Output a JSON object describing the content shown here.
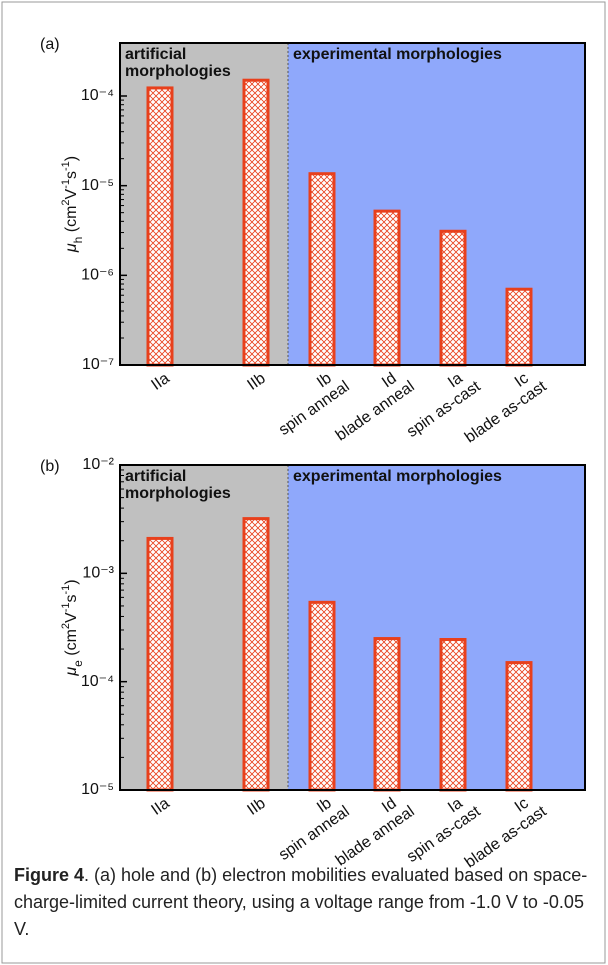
{
  "chart_data": [
    {
      "type": "bar",
      "panel_label": "(a)",
      "ylabel": [
        "μ",
        "h",
        " (cm",
        "2",
        "V",
        "-1",
        "s",
        "-1",
        ")"
      ],
      "categories": [
        "IIa",
        "IIb",
        "Ib",
        "Id",
        "Ia",
        "Ic"
      ],
      "category_notes": [
        null,
        null,
        "spin anneal",
        "blade anneal",
        "spin as-cast",
        "blade as-cast"
      ],
      "values": [
        0.000123,
        0.00015,
        1.36e-05,
        5.2e-06,
        3.1e-06,
        7e-07
      ],
      "color": "#e8401c",
      "log_scale": true,
      "ylim": [
        1e-07,
        0.00039
      ],
      "yticks": [
        {
          "value": 1e-07,
          "label": "10⁻⁷"
        },
        {
          "value": 1e-06,
          "label": "10⁻⁶"
        },
        {
          "value": 1e-05,
          "label": "10⁻⁵"
        },
        {
          "value": 0.0001,
          "label": "10⁻⁴"
        }
      ],
      "regions": [
        {
          "label_lines": [
            "artificial",
            "morphologies"
          ],
          "color": "#c0c0c0"
        },
        {
          "label_lines": [
            "experimental morphologies"
          ],
          "color": "#8fa8fb"
        }
      ]
    },
    {
      "type": "bar",
      "panel_label": "(b)",
      "ylabel": [
        "μ",
        "e",
        " (cm",
        "2",
        "V",
        "-1",
        "s",
        "-1",
        ")"
      ],
      "categories": [
        "IIa",
        "IIb",
        "Ib",
        "Id",
        "Ia",
        "Ic"
      ],
      "category_notes": [
        null,
        null,
        "spin anneal",
        "blade anneal",
        "spin as-cast",
        "blade as-cast"
      ],
      "values": [
        0.0021,
        0.0032,
        0.00054,
        0.00025,
        0.000245,
        0.00015
      ],
      "color": "#e8401c",
      "log_scale": true,
      "ylim": [
        1e-05,
        0.01
      ],
      "yticks": [
        {
          "value": 1e-05,
          "label": "10⁻⁵"
        },
        {
          "value": 0.0001,
          "label": "10⁻⁴"
        },
        {
          "value": 0.001,
          "label": "10⁻³"
        },
        {
          "value": 0.01,
          "label": "10⁻²"
        }
      ],
      "regions": [
        {
          "label_lines": [
            "artificial",
            "morphologies"
          ],
          "color": "#c0c0c0"
        },
        {
          "label_lines": [
            "experimental morphologies"
          ],
          "color": "#8fa8fb"
        }
      ]
    }
  ],
  "caption": {
    "label": "Figure 4",
    "text": ". (a) hole and (b) electron mobilities evaluated based on space-charge-limited current theory, using a voltage range from -1.0 V to -0.05 V."
  }
}
